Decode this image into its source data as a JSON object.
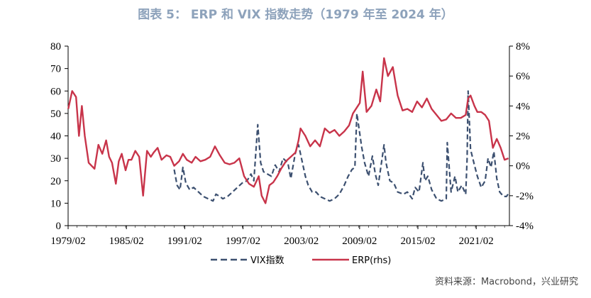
{
  "chart_data": {
    "type": "line",
    "title": "图表 5： ERP 和 VIX 指数走势（1979 年至 2024 年）",
    "source": "资料来源：Macrobond，兴业研究",
    "x_range": [
      1979.083,
      2024.5
    ],
    "x_ticks": [
      "1979/02",
      "1985/02",
      "1991/02",
      "1997/02",
      "2003/02",
      "2009/02",
      "2015/02",
      "2021/02"
    ],
    "y_left": {
      "ylim": [
        0,
        80
      ],
      "ticks": [
        "0",
        "10",
        "20",
        "30",
        "40",
        "50",
        "60",
        "70",
        "80"
      ]
    },
    "y_right": {
      "ylim": [
        -4,
        8
      ],
      "ticks": [
        "-4%",
        "-2%",
        "0%",
        "2%",
        "4%",
        "6%",
        "8%"
      ]
    },
    "legend": {
      "position": "bottom-center"
    },
    "series": [
      {
        "name": "VIX指数",
        "axis": "left",
        "style": "dashed",
        "color": "#3c5070",
        "x": [
          1990.0,
          1990.3,
          1990.6,
          1990.9,
          1991.2,
          1991.6,
          1992.0,
          1992.5,
          1993.0,
          1993.5,
          1994.0,
          1994.3,
          1994.7,
          1995.0,
          1995.5,
          1996.0,
          1996.5,
          1997.0,
          1997.5,
          1997.9,
          1998.2,
          1998.6,
          1998.9,
          1999.2,
          1999.6,
          2000.0,
          2000.4,
          2000.8,
          2001.2,
          2001.7,
          2002.0,
          2002.5,
          2002.8,
          2003.1,
          2003.5,
          2003.8,
          2004.2,
          2004.6,
          2005.0,
          2005.5,
          2006.0,
          2006.5,
          2007.0,
          2007.5,
          2007.9,
          2008.3,
          2008.6,
          2008.8,
          2009.0,
          2009.3,
          2009.6,
          2010.0,
          2010.4,
          2010.7,
          2011.0,
          2011.6,
          2011.8,
          2012.2,
          2012.6,
          2013.0,
          2013.6,
          2014.0,
          2014.5,
          2014.8,
          2015.2,
          2015.6,
          2015.8,
          2016.1,
          2016.5,
          2017.0,
          2017.5,
          2018.0,
          2018.1,
          2018.5,
          2018.9,
          2019.2,
          2019.6,
          2020.0,
          2020.15,
          2020.25,
          2020.5,
          2020.9,
          2021.2,
          2021.6,
          2022.0,
          2022.3,
          2022.6,
          2022.9,
          2023.2,
          2023.5,
          2023.9,
          2024.2,
          2024.5
        ],
        "values": [
          25,
          18,
          16,
          26,
          19,
          16,
          17,
          15,
          13,
          12,
          11,
          14,
          13,
          12,
          13,
          15,
          17,
          19,
          20,
          23,
          20,
          45,
          28,
          24,
          23,
          22,
          27,
          24,
          30,
          28,
          21,
          33,
          36,
          30,
          22,
          18,
          15,
          15,
          13,
          12,
          11,
          12,
          14,
          18,
          22,
          25,
          26,
          50,
          44,
          35,
          28,
          22,
          31,
          23,
          18,
          36,
          28,
          20,
          19,
          15,
          14,
          15,
          12,
          17,
          15,
          28,
          20,
          22,
          16,
          12,
          11,
          12,
          37,
          15,
          22,
          15,
          18,
          14,
          30,
          60,
          34,
          27,
          22,
          17,
          20,
          30,
          26,
          33,
          21,
          15,
          13,
          13,
          15
        ]
      },
      {
        "name": "ERP(rhs)",
        "axis": "right",
        "style": "solid",
        "color": "#c8344a",
        "x": [
          1979.1,
          1979.5,
          1979.9,
          1980.2,
          1980.5,
          1980.8,
          1981.2,
          1981.5,
          1981.8,
          1982.2,
          1982.6,
          1983.0,
          1983.3,
          1983.6,
          1984.0,
          1984.3,
          1984.6,
          1985.0,
          1985.3,
          1985.6,
          1986.0,
          1986.4,
          1986.8,
          1987.2,
          1987.6,
          1987.9,
          1988.3,
          1988.7,
          1989.2,
          1989.6,
          1990.0,
          1990.5,
          1990.9,
          1991.3,
          1991.8,
          1992.2,
          1992.7,
          1993.2,
          1993.7,
          1994.2,
          1994.7,
          1995.2,
          1995.7,
          1996.2,
          1996.7,
          1997.2,
          1997.7,
          1998.2,
          1998.7,
          1999.0,
          1999.4,
          1999.8,
          2000.2,
          2000.6,
          2001.0,
          2001.5,
          2002.0,
          2002.5,
          2002.8,
          2003.0,
          2003.5,
          2004.0,
          2004.5,
          2005.0,
          2005.5,
          2006.0,
          2006.5,
          2007.0,
          2007.5,
          2008.0,
          2008.4,
          2008.9,
          2009.1,
          2009.4,
          2009.8,
          2010.3,
          2010.8,
          2011.2,
          2011.6,
          2012.0,
          2012.5,
          2013.0,
          2013.5,
          2014.0,
          2014.5,
          2015.0,
          2015.5,
          2016.0,
          2016.5,
          2017.0,
          2017.5,
          2018.0,
          2018.5,
          2019.0,
          2019.5,
          2020.0,
          2020.25,
          2020.5,
          2020.9,
          2021.2,
          2021.6,
          2022.0,
          2022.4,
          2022.8,
          2023.2,
          2023.6,
          2024.0,
          2024.4
        ],
        "values": [
          3.8,
          5.0,
          4.6,
          2.0,
          4.0,
          2.0,
          0.2,
          0.0,
          -0.2,
          1.4,
          0.8,
          1.7,
          0.6,
          0.2,
          -1.2,
          0.3,
          0.8,
          -0.3,
          0.4,
          0.4,
          1.0,
          0.6,
          -2.0,
          1.0,
          0.6,
          0.9,
          1.2,
          0.4,
          0.7,
          0.6,
          0.0,
          0.3,
          0.8,
          0.4,
          0.2,
          0.6,
          0.3,
          0.4,
          0.6,
          1.3,
          0.7,
          0.2,
          0.1,
          0.2,
          0.5,
          -0.7,
          -1.2,
          -1.4,
          -0.7,
          -2.0,
          -2.5,
          -1.3,
          -1.1,
          -0.7,
          -0.2,
          0.3,
          0.6,
          0.9,
          1.7,
          2.5,
          2.0,
          1.3,
          1.7,
          1.3,
          2.5,
          2.2,
          2.4,
          2.0,
          2.3,
          2.7,
          3.5,
          4.0,
          4.2,
          6.3,
          3.6,
          4.0,
          5.1,
          4.3,
          7.2,
          6.0,
          6.6,
          4.7,
          3.7,
          3.8,
          3.6,
          4.3,
          3.9,
          4.5,
          3.8,
          3.4,
          3.0,
          3.1,
          3.5,
          3.2,
          3.2,
          3.4,
          4.5,
          4.7,
          4.0,
          3.6,
          3.6,
          3.4,
          3.0,
          1.2,
          1.8,
          1.2,
          0.4,
          0.5
        ]
      }
    ]
  },
  "colors": {
    "title": "#8da2bb",
    "vix": "#3c5070",
    "erp": "#c8344a"
  }
}
